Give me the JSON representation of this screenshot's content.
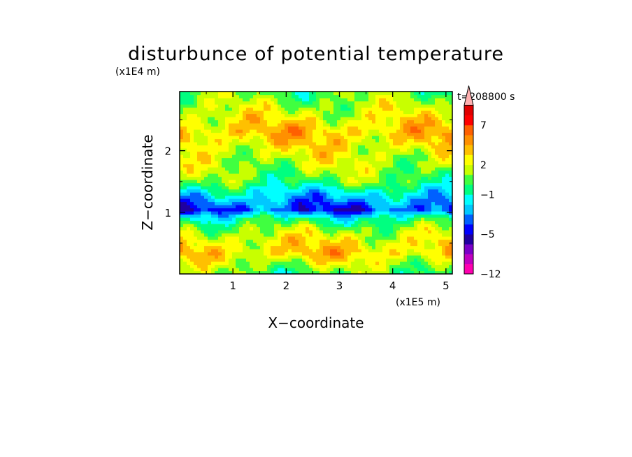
{
  "chart_data": {
    "type": "heatmap",
    "title": "disturbunce of potential temperature",
    "time_label": "t=208800 s",
    "xlabel": "X−coordinate",
    "ylabel": "Z−coordinate",
    "x_unit": "(x1E5 m)",
    "y_unit": "(x1E4 m)",
    "xlim": [
      0,
      5.12
    ],
    "ylim": [
      0,
      2.96
    ],
    "x_ticks": [
      "1",
      "2",
      "3",
      "4",
      "5"
    ],
    "y_ticks": [
      "1",
      "2"
    ],
    "x_tick_values": [
      1,
      2,
      3,
      4,
      5
    ],
    "y_tick_values": [
      1,
      2
    ],
    "colorbar": {
      "levels": [
        -12,
        -10,
        -8,
        -7,
        -5,
        -4,
        -3,
        -2,
        -1,
        0,
        1,
        2,
        3,
        4,
        5,
        7,
        8,
        9,
        10
      ],
      "colors": [
        "#ff00b0",
        "#c000c0",
        "#7a00c8",
        "#2000a0",
        "#0000ff",
        "#0060ff",
        "#00c8ff",
        "#00ffff",
        "#00ff80",
        "#40ff40",
        "#c8ff00",
        "#ffff00",
        "#ffc000",
        "#ff9000",
        "#ff6000",
        "#ff0000",
        "#e00000",
        "#ffb0b0"
      ],
      "labels": [
        "−12",
        "−5",
        "−1",
        "2",
        "7"
      ],
      "label_values": [
        -12,
        -5,
        -1,
        2,
        7
      ],
      "extend": "max"
    },
    "z_layers": [
      {
        "z": 2.96,
        "value": 0.5
      },
      {
        "z": 2.7,
        "value": 1.5
      },
      {
        "z": 2.3,
        "value": 3.5
      },
      {
        "z": 2.0,
        "value": 2.2
      },
      {
        "z": 1.7,
        "value": 1.2
      },
      {
        "z": 1.5,
        "value": 0.3
      },
      {
        "z": 1.3,
        "value": -2.0
      },
      {
        "z": 1.05,
        "value": -4.2
      },
      {
        "z": 0.9,
        "value": -0.8
      },
      {
        "z": 0.75,
        "value": 1.0
      },
      {
        "z": 0.55,
        "value": 2.5
      },
      {
        "z": 0.35,
        "value": 3.2
      },
      {
        "z": 0.15,
        "value": 1.5
      },
      {
        "z": 0.0,
        "value": 0.3
      }
    ]
  }
}
